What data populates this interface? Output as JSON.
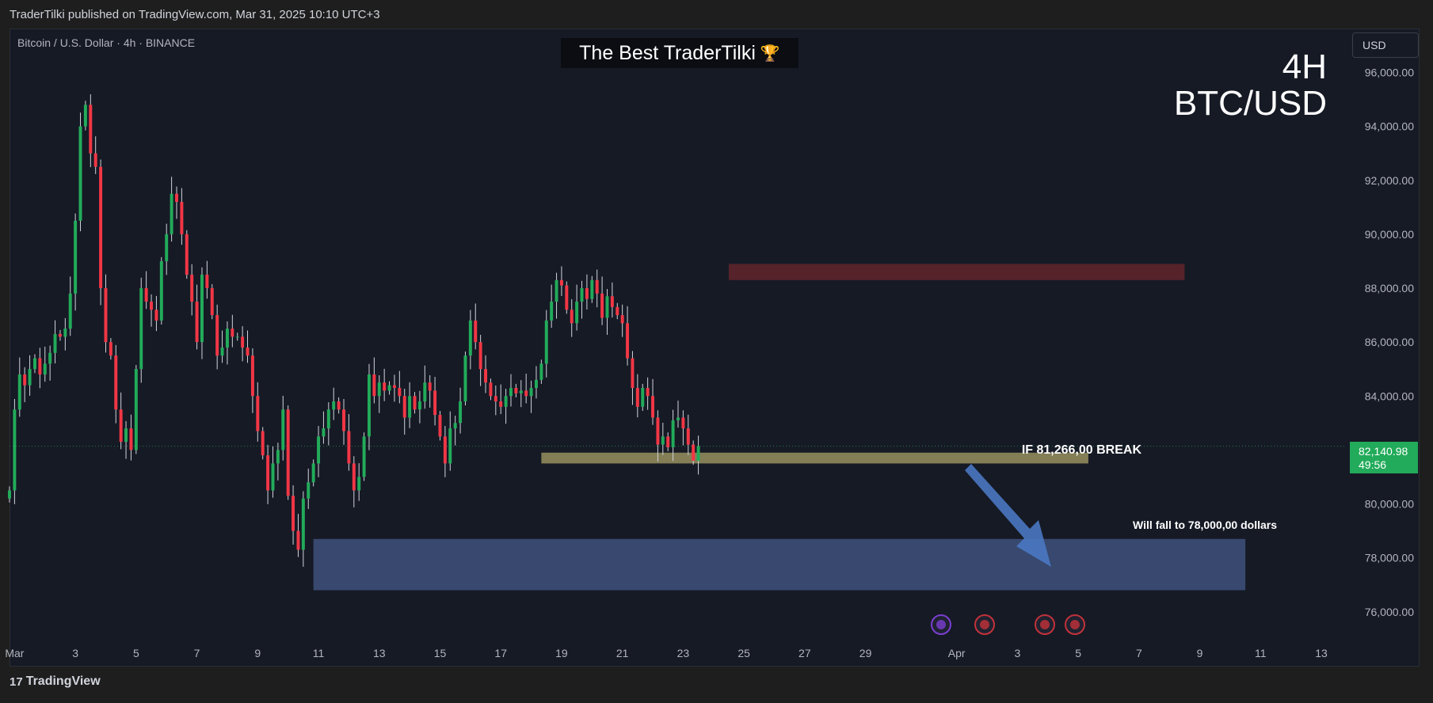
{
  "header": {
    "published": "TraderTilki published on TradingView.com, Mar 31, 2025 10:10 UTC+3"
  },
  "symbol": {
    "label": "Bitcoin / U.S. Dollar · 4h · BINANCE"
  },
  "banner": {
    "text": "The Best TraderTilki",
    "icon": "trophy-icon"
  },
  "overlay": {
    "line1": "4H",
    "line2": "BTC/USD"
  },
  "currency": {
    "label": "USD"
  },
  "last_price": {
    "value": "82,140.98",
    "countdown": "49:56"
  },
  "annotations": {
    "break_text": "IF 81,266,00 BREAK",
    "target_text": "Will fall to 78,000,00 dollars"
  },
  "footer": {
    "brand": "TradingView",
    "logo": "tradingview-logo-icon"
  },
  "colors": {
    "up": "#22ab5a",
    "down": "#f23645",
    "resistance": "#5a242b",
    "support": "#8f8a5c",
    "target": "#3a4b72",
    "arrow": "#4a78c2"
  },
  "chart_data": {
    "type": "candlestick",
    "ylim": [
      75200,
      97600
    ],
    "y_ticks": [
      76000,
      78000,
      80000,
      82000,
      84000,
      86000,
      88000,
      90000,
      92000,
      94000,
      96000
    ],
    "y_tick_labels": [
      "76,000.00",
      "78,000.00",
      "80,000.00",
      "",
      "84,000.00",
      "86,000.00",
      "88,000.00",
      "90,000.00",
      "92,000.00",
      "94,000.00",
      "96,000.00"
    ],
    "x_range": [
      "2025-02-28 20:00",
      "2025-04-13 20:00"
    ],
    "x_ticks": [
      {
        "label": "Mar",
        "date": "2025-03-01"
      },
      {
        "label": "3",
        "date": "2025-03-03"
      },
      {
        "label": "5",
        "date": "2025-03-05"
      },
      {
        "label": "7",
        "date": "2025-03-07"
      },
      {
        "label": "9",
        "date": "2025-03-09"
      },
      {
        "label": "11",
        "date": "2025-03-11"
      },
      {
        "label": "13",
        "date": "2025-03-13"
      },
      {
        "label": "15",
        "date": "2025-03-15"
      },
      {
        "label": "17",
        "date": "2025-03-17"
      },
      {
        "label": "19",
        "date": "2025-03-19"
      },
      {
        "label": "21",
        "date": "2025-03-21"
      },
      {
        "label": "23",
        "date": "2025-03-23"
      },
      {
        "label": "25",
        "date": "2025-03-25"
      },
      {
        "label": "27",
        "date": "2025-03-27"
      },
      {
        "label": "29",
        "date": "2025-03-29"
      },
      {
        "label": "Apr",
        "date": "2025-04-01"
      },
      {
        "label": "3",
        "date": "2025-04-03"
      },
      {
        "label": "5",
        "date": "2025-04-05"
      },
      {
        "label": "7",
        "date": "2025-04-07"
      },
      {
        "label": "9",
        "date": "2025-04-09"
      },
      {
        "label": "11",
        "date": "2025-04-11"
      },
      {
        "label": "13",
        "date": "2025-04-13"
      }
    ],
    "candle_interval_hours": 4,
    "first_candle": "2025-02-28 20:00",
    "closes": [
      80500,
      83500,
      84800,
      84400,
      85000,
      85400,
      84800,
      85200,
      85600,
      86300,
      86200,
      86500,
      87800,
      90500,
      94000,
      94800,
      93000,
      92500,
      88000,
      86000,
      85500,
      83500,
      82300,
      82800,
      82000,
      85000,
      88000,
      87500,
      87200,
      86800,
      89000,
      90000,
      91500,
      91200,
      90000,
      88500,
      87500,
      86000,
      88500,
      88000,
      87000,
      85500,
      85800,
      86500,
      86200,
      86200,
      85800,
      85500,
      84000,
      82700,
      81800,
      80500,
      81500,
      82000,
      83500,
      80300,
      79000,
      78300,
      80200,
      80800,
      81500,
      82500,
      82800,
      83500,
      83800,
      83500,
      82700,
      81500,
      80500,
      81000,
      82500,
      84800,
      84000,
      84500,
      84200,
      84400,
      84300,
      84000,
      83200,
      84000,
      83500,
      83800,
      84500,
      84200,
      83300,
      82500,
      81500,
      82800,
      83000,
      83800,
      85500,
      86800,
      86000,
      85000,
      84500,
      84000,
      83800,
      83600,
      84000,
      84300,
      84100,
      84200,
      84000,
      84300,
      84600,
      85200,
      86800,
      87500,
      88300,
      88100,
      87200,
      86700,
      87500,
      88000,
      87600,
      88300,
      87800,
      86900,
      87700,
      87300,
      87000,
      86700,
      85400,
      84300,
      83600,
      84300,
      84000,
      83200,
      82200,
      82500,
      82100,
      83100,
      83200,
      82800,
      82200,
      81600,
      82141
    ],
    "resistance_zone": {
      "from": 88300,
      "to": 88900
    },
    "support_zone": {
      "from": 81500,
      "to": 81900
    },
    "target_zone": {
      "from": 76800,
      "to": 78700
    },
    "annotations": [
      "IF 81,266,00 BREAK",
      "Will fall to 78,000,00 dollars"
    ]
  }
}
